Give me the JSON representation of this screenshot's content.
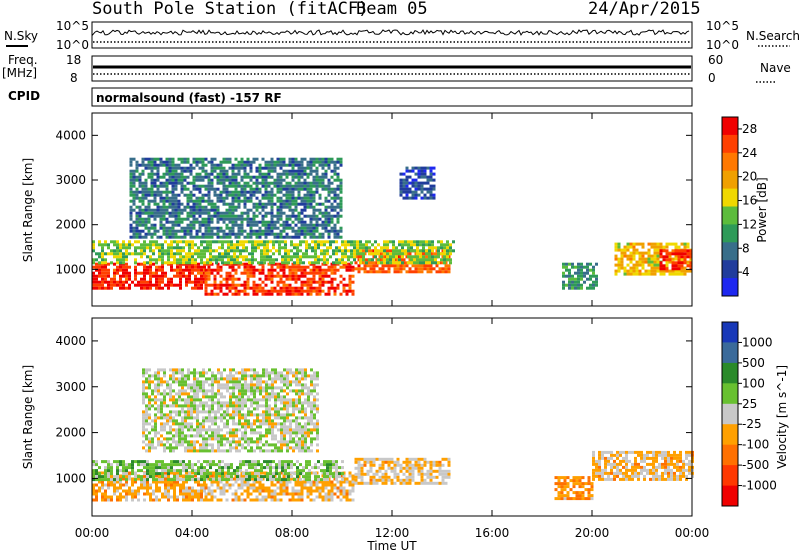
{
  "header": {
    "station": "South Pole Station (fitACF)",
    "beam": "Beam 05",
    "date": "24/Apr/2015"
  },
  "status_panels": {
    "nsky_label": "N.Sky",
    "nsearch_label": "N.Search",
    "noise_ticks_left": [
      "10^5",
      "10^0"
    ],
    "noise_ticks_right": [
      "10^5",
      "10^0"
    ],
    "freq_label_top": "Freq.",
    "freq_label_unit": "[MHz]",
    "freq_ticks": [
      "18",
      "8"
    ],
    "nave_label": "Nave",
    "nave_ticks": [
      "60",
      "0"
    ],
    "cpid_label": "CPID",
    "cpid_text": "normalsound (fast) -157 RF"
  },
  "colors": {
    "power_scale": [
      "#1e28f0",
      "#203c9c",
      "#386e8a",
      "#2e9a58",
      "#5cbc3c",
      "#f0d800",
      "#f0a000",
      "#ff7800",
      "#ff4000",
      "#f00000"
    ],
    "velocity_scale": [
      "#f00000",
      "#ff3800",
      "#ff7000",
      "#ffa000",
      "#c8c8c8",
      "#68c030",
      "#2a8a2a",
      "#3a6a9a",
      "#1838b8"
    ]
  },
  "chart_data": [
    {
      "type": "heatmap",
      "title": "",
      "xlabel": "Time UT",
      "ylabel": "Slant Range [km]",
      "x_ticks": [
        "00:00",
        "04:00",
        "08:00",
        "12:00",
        "16:00",
        "20:00",
        "00:00"
      ],
      "y_ticks": [
        "1000",
        "2000",
        "3000",
        "4000"
      ],
      "xlim_hours": [
        0,
        24
      ],
      "ylim_km": [
        180,
        4500
      ],
      "colorbar": {
        "label": "Power [dB]",
        "ticks": [
          "4",
          "8",
          "12",
          "16",
          "20",
          "24",
          "28"
        ],
        "range": [
          0,
          30
        ]
      },
      "regions": [
        {
          "t0": 0.0,
          "t1": 4.5,
          "r0": 550,
          "r1": 1150,
          "value": 27
        },
        {
          "t0": 4.5,
          "t1": 10.5,
          "r0": 450,
          "r1": 1150,
          "value": 26
        },
        {
          "t0": 10.5,
          "t1": 14.3,
          "r0": 950,
          "r1": 1450,
          "value": 24
        },
        {
          "t0": 0.0,
          "t1": 14.5,
          "r0": 1150,
          "r1": 1650,
          "value": 14
        },
        {
          "t0": 1.5,
          "t1": 10.0,
          "r0": 1700,
          "r1": 3500,
          "value": 8
        },
        {
          "t0": 12.3,
          "t1": 13.7,
          "r0": 2600,
          "r1": 3300,
          "value": 5
        },
        {
          "t0": 18.8,
          "t1": 20.2,
          "r0": 550,
          "r1": 1150,
          "value": 10
        },
        {
          "t0": 20.9,
          "t1": 24.0,
          "r0": 900,
          "r1": 1600,
          "value": 18
        },
        {
          "t0": 22.7,
          "t1": 24.0,
          "r0": 1000,
          "r1": 1450,
          "value": 27
        }
      ]
    },
    {
      "type": "heatmap",
      "title": "",
      "xlabel": "Time UT",
      "ylabel": "Slant Range [km]",
      "x_ticks": [
        "00:00",
        "04:00",
        "08:00",
        "12:00",
        "16:00",
        "20:00",
        "00:00"
      ],
      "y_ticks": [
        "1000",
        "2000",
        "3000",
        "4000"
      ],
      "xlim_hours": [
        0,
        24
      ],
      "ylim_km": [
        180,
        4500
      ],
      "colorbar": {
        "label": "Velocity [m s^-1]",
        "ticks": [
          "1000",
          "500",
          "100",
          "25",
          "-25",
          "-100",
          "-500",
          "-1000"
        ],
        "range": [
          -1000,
          1000
        ]
      },
      "regions": [
        {
          "t0": 0.0,
          "t1": 4.5,
          "r0": 550,
          "r1": 1150,
          "value": -200
        },
        {
          "t0": 4.5,
          "t1": 10.5,
          "r0": 500,
          "r1": 1150,
          "value": -150
        },
        {
          "t0": 10.5,
          "t1": 14.3,
          "r0": 900,
          "r1": 1450,
          "value": -120
        },
        {
          "t0": 0.0,
          "t1": 10.0,
          "r0": 1000,
          "r1": 1400,
          "value": 200
        },
        {
          "t0": 2.0,
          "t1": 9.0,
          "r0": 1600,
          "r1": 3400,
          "value": 50
        },
        {
          "t0": 18.5,
          "t1": 20.0,
          "r0": 550,
          "r1": 1050,
          "value": -300
        },
        {
          "t0": 20.0,
          "t1": 24.0,
          "r0": 950,
          "r1": 1600,
          "value": -150
        }
      ]
    }
  ]
}
